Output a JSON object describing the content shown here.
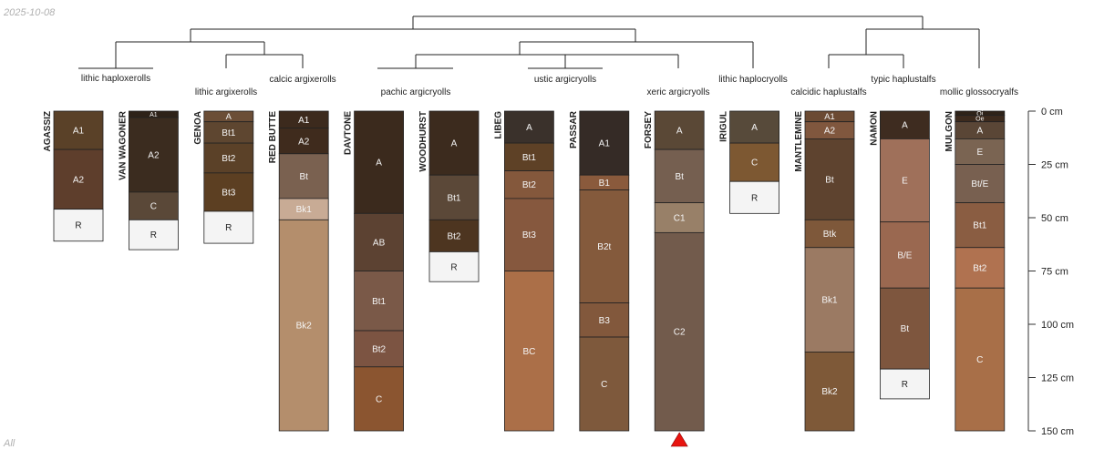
{
  "header": {
    "date": "2025-10-08"
  },
  "footer": {
    "label": "All"
  },
  "depth_axis": {
    "unit": "cm",
    "max": 150,
    "ticks": [
      0,
      25,
      50,
      75,
      100,
      125,
      150
    ],
    "tick_labels": [
      "0 cm",
      "25 cm",
      "50 cm",
      "75 cm",
      "100 cm",
      "125 cm",
      "150 cm"
    ]
  },
  "taxonomy_labels": [
    "lithic haploxerolls",
    "lithic argixerolls",
    "calcic argixerolls",
    "pachic argicryolls",
    "ustic argicryolls",
    "xeric argicryolls",
    "lithic haplocryolls",
    "calcidic haplustalfs",
    "typic haplustalfs",
    "mollic glossocryalfs"
  ],
  "marker": {
    "profile": "FORSEY",
    "color": "#e8140f"
  },
  "colors": {
    "axis": "#333333",
    "tree": "#222222",
    "text": "#222222"
  },
  "profiles": [
    {
      "name": "AGASSIZ",
      "horizons": [
        {
          "name": "A1",
          "top": 0,
          "bottom": 18,
          "color": "#5a4128"
        },
        {
          "name": "A2",
          "top": 18,
          "bottom": 46,
          "color": "#5e3e2c"
        },
        {
          "name": "R",
          "top": 46,
          "bottom": 61,
          "color": "#f4f4f4"
        }
      ]
    },
    {
      "name": "VAN WAGONER",
      "horizons": [
        {
          "name": "A1",
          "top": 0,
          "bottom": 3,
          "color": "#2e2218"
        },
        {
          "name": "A2",
          "top": 3,
          "bottom": 38,
          "color": "#3b2c1f"
        },
        {
          "name": "C",
          "top": 38,
          "bottom": 51,
          "color": "#5a4838"
        },
        {
          "name": "R",
          "top": 51,
          "bottom": 65,
          "color": "#f4f4f4"
        }
      ]
    },
    {
      "name": "GENOA",
      "horizons": [
        {
          "name": "A",
          "top": 0,
          "bottom": 5,
          "color": "#6b4e37"
        },
        {
          "name": "Bt1",
          "top": 5,
          "bottom": 15,
          "color": "#5e4630"
        },
        {
          "name": "Bt2",
          "top": 15,
          "bottom": 29,
          "color": "#5b4128"
        },
        {
          "name": "Bt3",
          "top": 29,
          "bottom": 47,
          "color": "#5c3f22"
        },
        {
          "name": "R",
          "top": 47,
          "bottom": 62,
          "color": "#f4f4f4"
        }
      ]
    },
    {
      "name": "RED BUTTE",
      "horizons": [
        {
          "name": "A1",
          "top": 0,
          "bottom": 8,
          "color": "#3c2a1d"
        },
        {
          "name": "A2",
          "top": 8,
          "bottom": 20,
          "color": "#3f2b1d"
        },
        {
          "name": "Bt",
          "top": 20,
          "bottom": 41,
          "color": "#7a6150"
        },
        {
          "name": "Bk1",
          "top": 41,
          "bottom": 51,
          "color": "#c8ab95"
        },
        {
          "name": "Bk2",
          "top": 51,
          "bottom": 150,
          "color": "#b48e6c"
        }
      ]
    },
    {
      "name": "DAVTONE",
      "horizons": [
        {
          "name": "A",
          "top": 0,
          "bottom": 48,
          "color": "#3b2a1d"
        },
        {
          "name": "AB",
          "top": 48,
          "bottom": 75,
          "color": "#5c4232"
        },
        {
          "name": "Bt1",
          "top": 75,
          "bottom": 103,
          "color": "#7a5948"
        },
        {
          "name": "Bt2",
          "top": 103,
          "bottom": 120,
          "color": "#7c5442"
        },
        {
          "name": "C",
          "top": 120,
          "bottom": 150,
          "color": "#8b5530"
        }
      ]
    },
    {
      "name": "WOODHURST",
      "horizons": [
        {
          "name": "A",
          "top": 0,
          "bottom": 30,
          "color": "#3c2b1e"
        },
        {
          "name": "Bt1",
          "top": 30,
          "bottom": 51,
          "color": "#5b4838"
        },
        {
          "name": "Bt2",
          "top": 51,
          "bottom": 66,
          "color": "#4d3520"
        },
        {
          "name": "R",
          "top": 66,
          "bottom": 80,
          "color": "#f4f4f4"
        }
      ]
    },
    {
      "name": "LIBEG",
      "horizons": [
        {
          "name": "A",
          "top": 0,
          "bottom": 15,
          "color": "#3a312b"
        },
        {
          "name": "Bt1",
          "top": 15,
          "bottom": 28,
          "color": "#5e4126"
        },
        {
          "name": "Bt2",
          "top": 28,
          "bottom": 41,
          "color": "#84583c"
        },
        {
          "name": "Bt3",
          "top": 41,
          "bottom": 75,
          "color": "#86583e"
        },
        {
          "name": "BC",
          "top": 75,
          "bottom": 150,
          "color": "#ab6f48"
        }
      ]
    },
    {
      "name": "PASSAR",
      "horizons": [
        {
          "name": "A1",
          "top": 0,
          "bottom": 30,
          "color": "#352b26"
        },
        {
          "name": "B1",
          "top": 30,
          "bottom": 37,
          "color": "#8a5a3c"
        },
        {
          "name": "B2t",
          "top": 37,
          "bottom": 90,
          "color": "#845a3c"
        },
        {
          "name": "B3",
          "top": 90,
          "bottom": 106,
          "color": "#82583c"
        },
        {
          "name": "C",
          "top": 106,
          "bottom": 150,
          "color": "#7e593c"
        }
      ]
    },
    {
      "name": "FORSEY",
      "horizons": [
        {
          "name": "A",
          "top": 0,
          "bottom": 18,
          "color": "#5a4836"
        },
        {
          "name": "Bt",
          "top": 18,
          "bottom": 43,
          "color": "#755f50"
        },
        {
          "name": "C1",
          "top": 43,
          "bottom": 57,
          "color": "#988068"
        },
        {
          "name": "C2",
          "top": 57,
          "bottom": 150,
          "color": "#725b4c"
        }
      ]
    },
    {
      "name": "IRIGUL",
      "horizons": [
        {
          "name": "A",
          "top": 0,
          "bottom": 15,
          "color": "#574a3a"
        },
        {
          "name": "C",
          "top": 15,
          "bottom": 33,
          "color": "#7d5832"
        },
        {
          "name": "R",
          "top": 33,
          "bottom": 48,
          "color": "#f4f4f4"
        }
      ]
    },
    {
      "name": "MANTLEMINE",
      "horizons": [
        {
          "name": "A1",
          "top": 0,
          "bottom": 5,
          "color": "#6b4a33"
        },
        {
          "name": "A2",
          "top": 5,
          "bottom": 13,
          "color": "#80573e"
        },
        {
          "name": "Bt",
          "top": 13,
          "bottom": 51,
          "color": "#5e432f"
        },
        {
          "name": "Btk",
          "top": 51,
          "bottom": 64,
          "color": "#7e583a"
        },
        {
          "name": "Bk1",
          "top": 64,
          "bottom": 113,
          "color": "#9b7a63"
        },
        {
          "name": "Bk2",
          "top": 113,
          "bottom": 150,
          "color": "#7e5938"
        }
      ]
    },
    {
      "name": "NAMON",
      "horizons": [
        {
          "name": "A",
          "top": 0,
          "bottom": 13,
          "color": "#3e2c20"
        },
        {
          "name": "E",
          "top": 13,
          "bottom": 52,
          "color": "#9f705a"
        },
        {
          "name": "B/E",
          "top": 52,
          "bottom": 83,
          "color": "#9a6850"
        },
        {
          "name": "Bt",
          "top": 83,
          "bottom": 121,
          "color": "#7e563e"
        },
        {
          "name": "R",
          "top": 121,
          "bottom": 135,
          "color": "#f4f4f4"
        }
      ]
    },
    {
      "name": "MULGON",
      "horizons": [
        {
          "name": "Oi",
          "top": 0,
          "bottom": 2,
          "color": "#2e2218"
        },
        {
          "name": "Oe",
          "top": 2,
          "bottom": 5,
          "color": "#3c2a1d"
        },
        {
          "name": "A",
          "top": 5,
          "bottom": 13,
          "color": "#5a4636"
        },
        {
          "name": "E",
          "top": 13,
          "bottom": 25,
          "color": "#7a6452"
        },
        {
          "name": "Bt/E",
          "top": 25,
          "bottom": 43,
          "color": "#786050"
        },
        {
          "name": "Bt1",
          "top": 43,
          "bottom": 64,
          "color": "#8a5d42"
        },
        {
          "name": "Bt2",
          "top": 64,
          "bottom": 83,
          "color": "#b07250"
        },
        {
          "name": "C",
          "top": 83,
          "bottom": 150,
          "color": "#a86f48"
        }
      ]
    }
  ]
}
